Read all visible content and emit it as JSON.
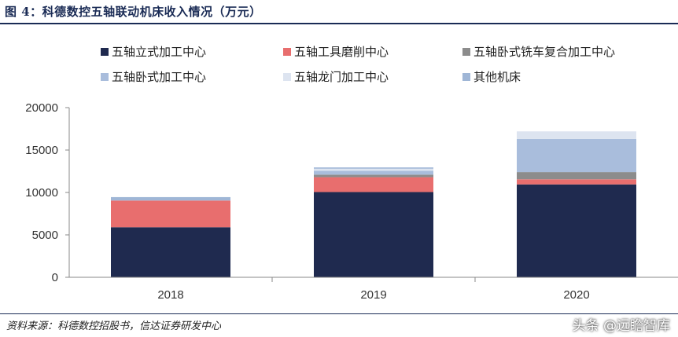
{
  "title": "图 4：科德数控五轴联动机床收入情况（万元）",
  "source": "资料来源：科德数控招股书，信达证券研发中心",
  "watermark": "头条 @远瞻智库",
  "chart_data": {
    "type": "stacked-bar",
    "categories": [
      "2018",
      "2019",
      "2020"
    ],
    "ylim": [
      0,
      20000
    ],
    "yticks": [
      0,
      5000,
      10000,
      15000,
      20000
    ],
    "legend_position": "top",
    "series": [
      {
        "name": "五轴立式加工中心",
        "color": "#1f2a4f",
        "values": [
          5900,
          10050,
          10950
        ]
      },
      {
        "name": "五轴工具磨削中心",
        "color": "#e86e6e",
        "values": [
          3150,
          1750,
          600
        ]
      },
      {
        "name": "五轴卧式铣车复合加工中心",
        "color": "#8c8c8c",
        "values": [
          0,
          300,
          850
        ]
      },
      {
        "name": "五轴卧式加工中心",
        "color": "#a9bddc",
        "values": [
          0,
          450,
          3900
        ]
      },
      {
        "name": "五轴龙门加工中心",
        "color": "#dde4f0",
        "values": [
          0,
          250,
          900
        ]
      },
      {
        "name": "其他机床",
        "color": "#9fb6d6",
        "values": [
          400,
          150,
          0
        ]
      }
    ]
  }
}
